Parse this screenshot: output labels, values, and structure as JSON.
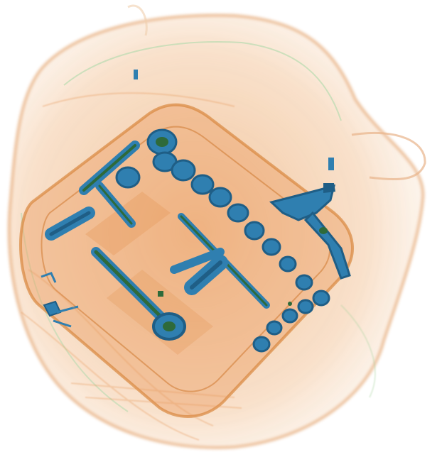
{
  "image": {
    "kind": "x-ray baggage scan",
    "palette": {
      "background": "#ffffff",
      "organic_light": "#f4c9a0",
      "organic": "#e8a56a",
      "organic_dark": "#d98a4a",
      "mixed_green": "#a9d4a0",
      "metal_blue": "#2f7fb0",
      "metal_dark": "#1f5e86",
      "metal_core": "#2e6a3a",
      "edge_green": "#3f7f4a"
    }
  }
}
